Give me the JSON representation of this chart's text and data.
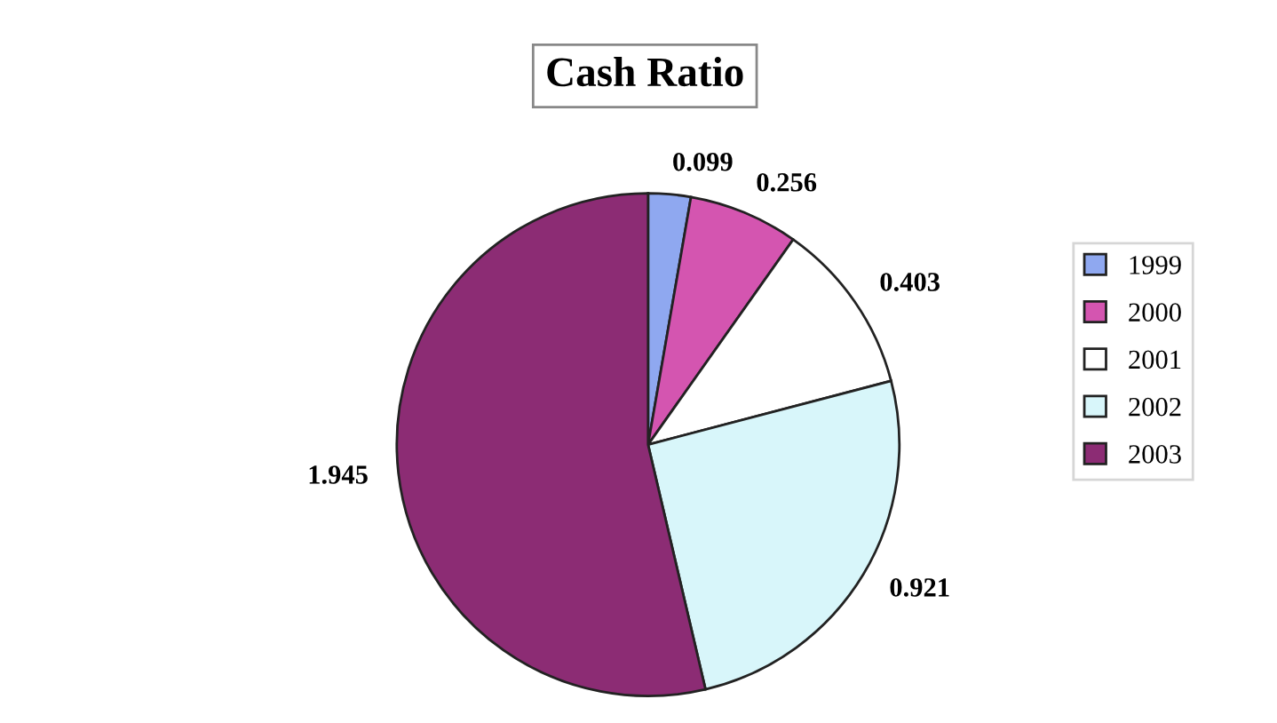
{
  "chart_data": {
    "type": "pie",
    "title": "Cash Ratio",
    "categories": [
      "1999",
      "2000",
      "2001",
      "2002",
      "2003"
    ],
    "values": [
      0.099,
      0.256,
      0.403,
      0.921,
      1.945
    ],
    "colors": [
      "#8fa8f0",
      "#d455b0",
      "#ffffff",
      "#d8f6fa",
      "#8c2c74"
    ],
    "data_labels": true,
    "legend": "right"
  }
}
